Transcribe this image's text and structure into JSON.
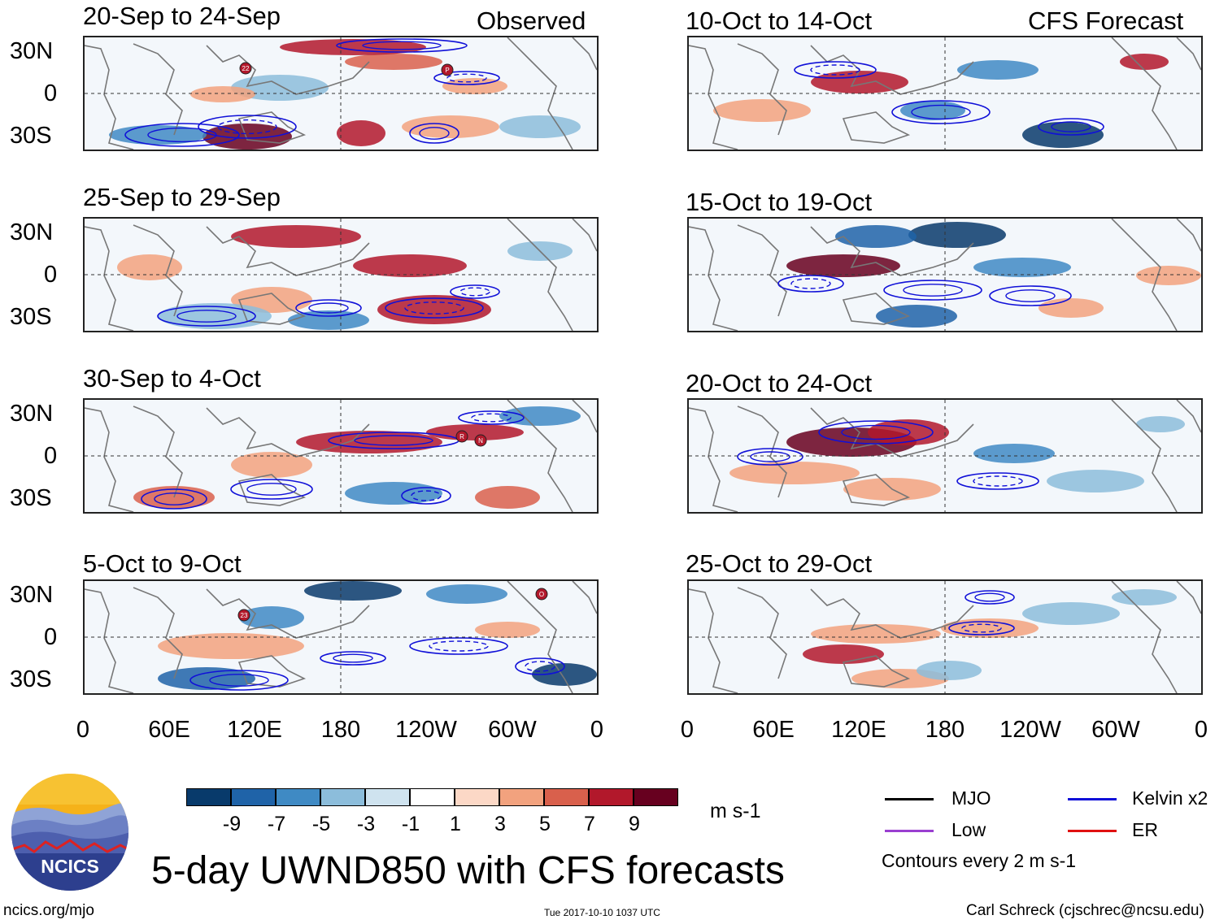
{
  "headers": {
    "left": "Observed",
    "right": "CFS Forecast"
  },
  "panels": [
    {
      "label": "20-Sep to 24-Sep",
      "col": "left",
      "storms": [
        "22",
        "P"
      ]
    },
    {
      "label": "25-Sep to 29-Sep",
      "col": "left",
      "storms": []
    },
    {
      "label": "30-Sep to 4-Oct",
      "col": "left",
      "storms": [
        "R",
        "N"
      ]
    },
    {
      "label": "5-Oct to 9-Oct",
      "col": "left",
      "storms": [
        "23",
        "O"
      ]
    },
    {
      "label": "10-Oct to 14-Oct",
      "col": "right",
      "storms": []
    },
    {
      "label": "15-Oct to 19-Oct",
      "col": "right",
      "storms": []
    },
    {
      "label": "20-Oct to 24-Oct",
      "col": "right",
      "storms": []
    },
    {
      "label": "25-Oct to 29-Oct",
      "col": "right",
      "storms": []
    }
  ],
  "chart_data": {
    "type": "heatmap",
    "title": "5-day UWND850 with CFS forecasts",
    "variable": "850-hPa zonal wind anomaly",
    "units": "m s-1",
    "y_ticks": [
      "30N",
      "0",
      "30S"
    ],
    "y_range": [
      -40,
      40
    ],
    "x_ticks": [
      "0",
      "60E",
      "120E",
      "180",
      "120W",
      "60W",
      "0"
    ],
    "x_range": [
      0,
      360
    ],
    "colorbar": {
      "labels": [
        "-9",
        "-7",
        "-5",
        "-3",
        "-1",
        "1",
        "3",
        "5",
        "7",
        "9"
      ],
      "units": "m s-1",
      "colors": [
        "#083a6b",
        "#1f63a8",
        "#3f8ac4",
        "#8cbddb",
        "#cfe3ef",
        "#ffffff",
        "#fcd8c6",
        "#f2a27e",
        "#d9604c",
        "#b2182b",
        "#67001f"
      ]
    },
    "contour_note": "Contours every 2 m s-1",
    "legend": [
      {
        "label": "MJO",
        "color": "#000000"
      },
      {
        "label": "Kelvin x2",
        "color": "#1010d8"
      },
      {
        "label": "Low",
        "color": "#9a3fd0"
      },
      {
        "label": "ER",
        "color": "#e01010"
      }
    ]
  },
  "footer": {
    "logo_text": "NCICS",
    "url": "ncics.org/mjo",
    "timestamp": "Tue 2017-10-10 1037 UTC",
    "credit": "Carl Schreck (cjschrec@ncsu.edu)"
  }
}
